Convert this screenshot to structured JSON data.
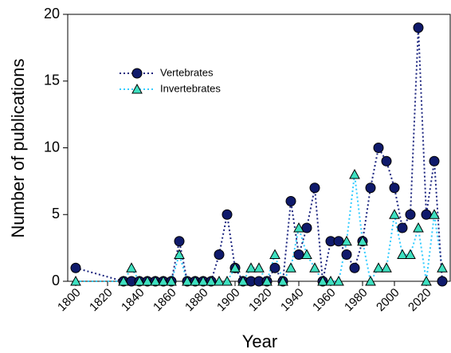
{
  "chart_data": {
    "type": "line",
    "xlabel": "Year",
    "ylabel": "Number of publications",
    "x": [
      1800,
      1830,
      1835,
      1840,
      1845,
      1850,
      1855,
      1860,
      1865,
      1870,
      1875,
      1880,
      1885,
      1890,
      1895,
      1900,
      1905,
      1910,
      1915,
      1920,
      1925,
      1930,
      1935,
      1940,
      1945,
      1950,
      1955,
      1960,
      1965,
      1970,
      1975,
      1980,
      1985,
      1990,
      1995,
      2000,
      2005,
      2010,
      2015,
      2020,
      2025,
      2030
    ],
    "series": [
      {
        "name": "Vertebrates",
        "color": "#0f1a6b",
        "line_color": "#1a237e",
        "marker": "circle",
        "values": [
          1,
          0,
          0,
          0,
          0,
          0,
          0,
          0,
          3,
          0,
          0,
          0,
          0,
          2,
          5,
          1,
          0,
          0,
          0,
          0,
          1,
          0,
          6,
          2,
          4,
          7,
          0,
          3,
          3,
          2,
          1,
          3,
          7,
          10,
          9,
          7,
          4,
          5,
          19,
          5,
          9,
          0
        ]
      },
      {
        "name": "Invertebrates",
        "color": "#3ee0c0",
        "line_color": "#33ccff",
        "marker": "triangle",
        "values": [
          0,
          0,
          1,
          0,
          0,
          0,
          0,
          0,
          2,
          0,
          0,
          0,
          0,
          0,
          0,
          1,
          0,
          1,
          1,
          0,
          2,
          0,
          1,
          4,
          2,
          1,
          0,
          0,
          0,
          3,
          8,
          3,
          0,
          1,
          1,
          5,
          2,
          2,
          4,
          0,
          5,
          1
        ]
      }
    ],
    "xlim": [
      1795,
      2035
    ],
    "xticks": [
      1800,
      1820,
      1840,
      1860,
      1880,
      1900,
      1920,
      1940,
      1960,
      1980,
      2000,
      2020
    ],
    "ylim": [
      0,
      20
    ],
    "yticks": [
      0,
      5,
      10,
      15,
      20
    ]
  }
}
